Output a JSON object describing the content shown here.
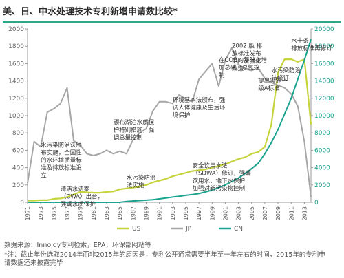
{
  "title": "美、日、中水处理技术专利新增申请数比较*",
  "source": "数据来源：Innojoy专利检索，EPA，环保部网站等",
  "footnote_line1": "*注：截止年份选取2014年而非2015年的原因是，专利公开通常需要半年至一年左右的时间，2015年的专利申",
  "footnote_line2": "请数据还未披露完毕",
  "colors": {
    "US": "#c5d43a",
    "JP": "#a6a6a6",
    "CN": "#1aa38e",
    "annot": "#333333"
  },
  "chart_data": {
    "type": "line",
    "x": [
      1971,
      1972,
      1973,
      1974,
      1975,
      1976,
      1977,
      1978,
      1979,
      1980,
      1981,
      1982,
      1983,
      1984,
      1985,
      1986,
      1987,
      1988,
      1989,
      1990,
      1991,
      1992,
      1993,
      1994,
      1995,
      1996,
      1997,
      1998,
      1999,
      2000,
      2001,
      2002,
      2003,
      2004,
      2005,
      2006,
      2007,
      2008,
      2009,
      2010,
      2011,
      2012,
      2013,
      2014
    ],
    "x_tick_labels": [
      "1971",
      "1973",
      "1975",
      "1977",
      "1979",
      "1981",
      "1983",
      "1985",
      "1987",
      "1989",
      "1991",
      "1993",
      "1995",
      "1997",
      "1999",
      "2001",
      "2003",
      "2005",
      "2007",
      "2009",
      "2011",
      "2013"
    ],
    "y_left_ticks": [
      0,
      200,
      400,
      600,
      800,
      1000,
      1200,
      1400,
      1600,
      1800,
      2000
    ],
    "y_right_ticks": [
      0,
      2000,
      4000,
      6000,
      8000,
      10000,
      12000,
      14000,
      16000,
      18000,
      20000
    ],
    "ylim_left": [
      0,
      2000
    ],
    "ylim_right": [
      0,
      20000
    ],
    "legend_position": "bottom",
    "grid": false,
    "series": [
      {
        "name": "US",
        "axis": "left",
        "values": [
          20,
          20,
          25,
          25,
          40,
          45,
          60,
          90,
          120,
          115,
          110,
          110,
          120,
          125,
          150,
          160,
          170,
          180,
          200,
          230,
          250,
          270,
          300,
          320,
          340,
          360,
          370,
          380,
          400,
          420,
          440,
          470,
          500,
          520,
          560,
          580,
          640,
          900,
          1500,
          1650,
          1650,
          1620,
          1650,
          900
        ]
      },
      {
        "name": "JP",
        "axis": "left",
        "values": [
          220,
          700,
          640,
          1040,
          1080,
          1140,
          1320,
          710,
          660,
          560,
          540,
          560,
          600,
          560,
          590,
          560,
          720,
          800,
          850,
          1050,
          1160,
          1160,
          1140,
          1240,
          1190,
          1160,
          1420,
          1510,
          1600,
          1340,
          1640,
          1780,
          1590,
          1540,
          1520,
          1550,
          1430,
          1380,
          1350,
          1320,
          1250,
          1110,
          700,
          60
        ]
      },
      {
        "name": "CN",
        "axis": "right",
        "values": [
          0,
          0,
          0,
          0,
          0,
          0,
          0,
          0,
          0,
          0,
          0,
          0,
          0,
          0,
          0,
          100,
          150,
          200,
          250,
          300,
          400,
          500,
          600,
          700,
          800,
          900,
          1000,
          1200,
          1400,
          1700,
          2000,
          2400,
          2800,
          3300,
          3900,
          4500,
          5600,
          6900,
          8400,
          10200,
          12000,
          14200,
          16400,
          18800
        ]
      }
    ]
  },
  "annotations": [
    {
      "text": "水污染防治法颁\n布实施，全国性\n的水环境质量标\n准及排放标准设\n立",
      "year": 1973,
      "value": 640
    },
    {
      "text": "清洁水法案\n（CWA）出台，\n强调水质保护",
      "year": 1976,
      "value": 130
    },
    {
      "text": "颁布湖泊水质保\n护特别措施，强\n调总量控制",
      "year": 1984,
      "value": 900
    },
    {
      "text": "环境基本法颁布，强\n调人体健康及生活环\n境保护",
      "year": 1993,
      "value": 1160
    },
    {
      "text": "水污染防治\n法实施",
      "year": 1986,
      "value": 260
    },
    {
      "text": "在COD的基础上增\n加总磷、总氮控\n制",
      "year": 2000,
      "value": 1620
    },
    {
      "text": "安全饮用水法\n（SDWA）修订，强调\n饮用水、地下水保护\n加强对新污染物控制",
      "year": 1996,
      "value": 400
    },
    {
      "text": "2002 版 排\n放标准发布\n第一次强化\n改造",
      "year": 2002,
      "value": 1780
    },
    {
      "text": "提出实施一\n级A标准",
      "year": 2006,
      "value": 1380
    },
    {
      "text": "水十条\n排放标准再修订",
      "year": 2011,
      "value": 1840
    },
    {
      "text": "水污染防治\n法修订",
      "year": 2008,
      "value": 1500
    }
  ]
}
